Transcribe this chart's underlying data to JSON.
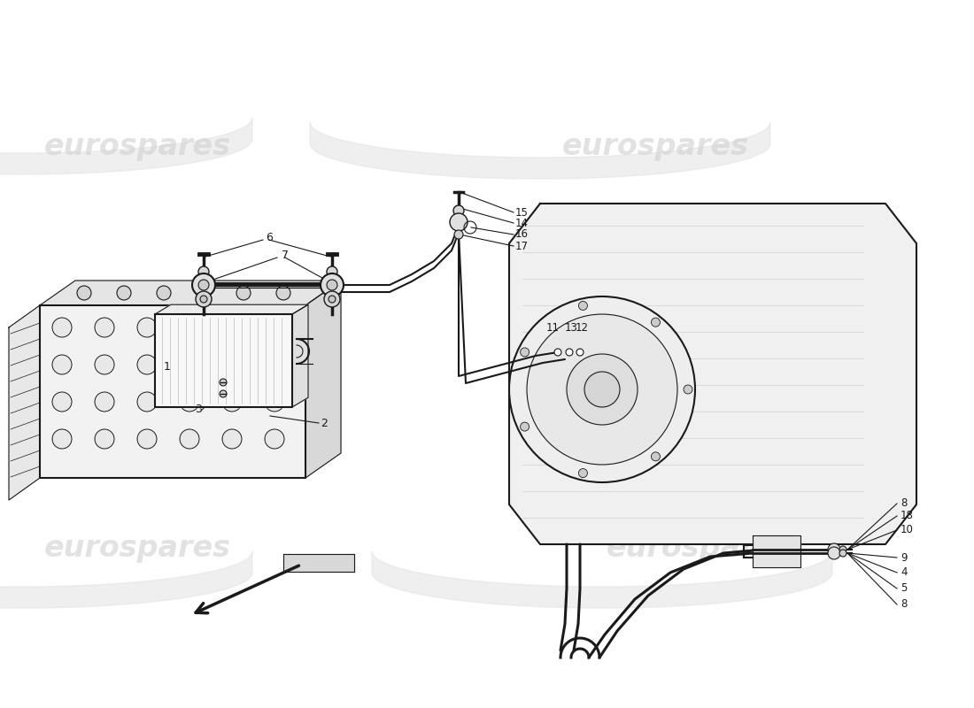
{
  "bg_color": "#ffffff",
  "line_color": "#1a1a1a",
  "fig_w": 11.0,
  "fig_h": 8.0,
  "dpi": 100,
  "watermark_text": "eurospares",
  "watermark_color": "#d0d0d0",
  "watermark_alpha": 0.6,
  "part_numbers": [
    "1",
    "2",
    "3",
    "4",
    "5",
    "6",
    "7",
    "8",
    "9",
    "10",
    "11",
    "12",
    "13",
    "14",
    "15",
    "16",
    "17",
    "18"
  ]
}
